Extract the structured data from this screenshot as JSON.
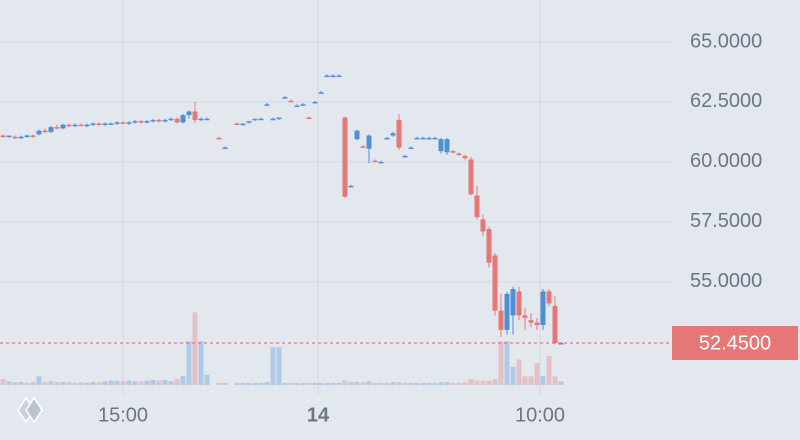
{
  "chart_data": {
    "type": "candlestick",
    "up_color": "#4f8fd6",
    "down_color": "#e57777",
    "grid": true,
    "ylim": [
      50.7,
      66.75
    ],
    "yticks": [
      {
        "value": 65,
        "label": "65.0000"
      },
      {
        "value": 62.5,
        "label": "62.5000"
      },
      {
        "value": 60,
        "label": "60.0000"
      },
      {
        "value": 57.5,
        "label": "57.5000"
      },
      {
        "value": 55,
        "label": "55.0000"
      }
    ],
    "xlim": [
      0,
      112
    ],
    "xticks": [
      {
        "value": 20.5,
        "label": "15:00"
      },
      {
        "value": 53,
        "label": "14"
      },
      {
        "value": 90,
        "label": "10:00"
      }
    ],
    "volume_ylim": [
      0,
      110
    ],
    "last_price": {
      "value": 52.45,
      "label": "52.4500"
    },
    "x": [
      0,
      1,
      2,
      3,
      4,
      5,
      6,
      7,
      8,
      9,
      10,
      11,
      12,
      13,
      14,
      15,
      16,
      17,
      18,
      19,
      20,
      21,
      22,
      23,
      24,
      25,
      26,
      27,
      28,
      29,
      30,
      31,
      32,
      33,
      34,
      36,
      37,
      39,
      40,
      41,
      42,
      43,
      44,
      45,
      46,
      47,
      48,
      49,
      50,
      51,
      52,
      53,
      54,
      55,
      56,
      57,
      58,
      59,
      60,
      61,
      62,
      63,
      64,
      65,
      66,
      67,
      68,
      69,
      70,
      71,
      72,
      73,
      74,
      75,
      76,
      77,
      78,
      79,
      80,
      81,
      82,
      83,
      84,
      85,
      86,
      87,
      88,
      89,
      90,
      91,
      92,
      93
    ],
    "open": [
      61.1,
      61.05,
      61.05,
      61.0,
      61.05,
      61.1,
      61.15,
      61.3,
      61.25,
      61.45,
      61.4,
      61.55,
      61.5,
      61.55,
      61.5,
      61.55,
      61.6,
      61.55,
      61.6,
      61.6,
      61.65,
      61.6,
      61.65,
      61.7,
      61.65,
      61.7,
      61.75,
      61.7,
      61.75,
      61.8,
      61.65,
      61.95,
      62.1,
      61.75,
      61.8,
      61.0,
      60.6,
      61.6,
      61.55,
      61.65,
      61.75,
      61.8,
      62.4,
      61.8,
      61.8,
      62.7,
      62.55,
      62.35,
      62.4,
      61.85,
      62.5,
      62.9,
      63.6,
      63.6,
      63.6,
      61.85,
      59.0,
      60.95,
      60.65,
      60.55,
      60.05,
      60.0,
      61.0,
      61.1,
      61.75,
      60.25,
      60.6,
      61.0,
      61.0,
      61.0,
      61.0,
      60.45,
      60.4,
      60.45,
      60.35,
      60.25,
      60.1,
      58.6,
      57.6,
      57.2,
      56.1,
      53.8,
      53.0,
      53.6,
      54.6,
      53.6,
      53.4,
      53.3,
      53.2,
      54.6,
      54.0,
      52.45
    ],
    "high": [
      61.15,
      61.1,
      61.1,
      61.1,
      61.15,
      61.15,
      61.35,
      61.4,
      61.5,
      61.55,
      61.6,
      61.6,
      61.6,
      61.6,
      61.6,
      61.65,
      61.65,
      61.65,
      61.65,
      61.7,
      61.7,
      61.7,
      61.75,
      61.75,
      61.75,
      61.8,
      61.8,
      61.8,
      61.85,
      61.85,
      62.0,
      62.15,
      62.5,
      61.85,
      61.85,
      61.05,
      60.65,
      61.65,
      61.6,
      61.7,
      61.8,
      61.85,
      62.45,
      61.85,
      61.85,
      62.75,
      62.6,
      62.4,
      62.45,
      61.9,
      62.55,
      62.95,
      63.65,
      63.65,
      63.65,
      61.9,
      59.05,
      61.35,
      60.7,
      61.15,
      60.1,
      60.05,
      61.05,
      61.25,
      62.0,
      60.3,
      60.65,
      61.05,
      61.05,
      61.05,
      61.05,
      61.0,
      61.0,
      60.5,
      60.4,
      60.3,
      60.2,
      59.0,
      57.8,
      57.3,
      56.2,
      54.5,
      54.6,
      54.8,
      54.8,
      53.9,
      53.7,
      53.5,
      54.7,
      54.7,
      54.4,
      52.5
    ],
    "low": [
      61.0,
      61.0,
      60.95,
      60.95,
      61.0,
      61.0,
      61.1,
      61.2,
      61.2,
      61.35,
      61.35,
      61.45,
      61.45,
      61.5,
      61.45,
      61.5,
      61.5,
      61.5,
      61.55,
      61.55,
      61.6,
      61.55,
      61.6,
      61.6,
      61.6,
      61.65,
      61.65,
      61.65,
      61.7,
      61.6,
      61.6,
      61.8,
      61.65,
      61.7,
      61.75,
      60.95,
      60.55,
      61.55,
      61.5,
      61.6,
      61.7,
      61.75,
      62.35,
      61.75,
      61.75,
      62.65,
      62.5,
      62.3,
      62.35,
      61.8,
      62.45,
      62.85,
      63.55,
      63.55,
      63.55,
      58.5,
      58.95,
      60.9,
      60.6,
      59.95,
      60.0,
      59.95,
      60.95,
      61.05,
      60.5,
      60.2,
      60.55,
      60.95,
      60.95,
      60.95,
      60.95,
      60.35,
      60.3,
      60.35,
      60.25,
      60.1,
      58.6,
      57.6,
      56.9,
      55.6,
      53.6,
      52.7,
      52.8,
      52.8,
      53.4,
      53.0,
      53.1,
      53.0,
      53.0,
      54.0,
      52.4,
      52.4
    ],
    "close": [
      61.05,
      61.1,
      61.0,
      61.05,
      61.1,
      61.05,
      61.3,
      61.25,
      61.45,
      61.4,
      61.55,
      61.5,
      61.55,
      61.5,
      61.55,
      61.6,
      61.55,
      61.6,
      61.6,
      61.65,
      61.6,
      61.65,
      61.7,
      61.65,
      61.7,
      61.75,
      61.7,
      61.75,
      61.8,
      61.65,
      61.95,
      62.1,
      61.75,
      61.8,
      61.8,
      60.95,
      60.6,
      61.55,
      61.6,
      61.7,
      61.8,
      61.8,
      62.4,
      61.8,
      61.85,
      62.7,
      62.5,
      62.35,
      62.4,
      61.8,
      62.5,
      62.9,
      63.6,
      63.6,
      63.6,
      58.55,
      59.0,
      61.3,
      60.6,
      61.1,
      60.0,
      60.0,
      61.0,
      61.2,
      60.6,
      60.25,
      60.6,
      61.0,
      61.0,
      61.0,
      61.0,
      60.95,
      60.95,
      60.4,
      60.3,
      60.15,
      58.65,
      57.7,
      57.1,
      55.8,
      53.8,
      53.0,
      54.5,
      54.7,
      53.6,
      53.5,
      53.3,
      53.2,
      54.6,
      54.1,
      52.45,
      52.45
    ],
    "volume": [
      8,
      5,
      4,
      4,
      3,
      4,
      12,
      4,
      5,
      4,
      4,
      4,
      3,
      4,
      3,
      4,
      4,
      5,
      6,
      6,
      5,
      6,
      5,
      5,
      6,
      7,
      6,
      7,
      5,
      8,
      12,
      60,
      100,
      60,
      14,
      3,
      3,
      3,
      3,
      3,
      3,
      3,
      4,
      52,
      52,
      3,
      3,
      3,
      3,
      3,
      3,
      3,
      3,
      3,
      3,
      6,
      4,
      4,
      4,
      5,
      3,
      3,
      3,
      4,
      4,
      3,
      3,
      3,
      3,
      3,
      3,
      4,
      4,
      3,
      3,
      4,
      8,
      6,
      6,
      6,
      8,
      60,
      60,
      25,
      35,
      12,
      12,
      30,
      12,
      40,
      12,
      5
    ]
  }
}
